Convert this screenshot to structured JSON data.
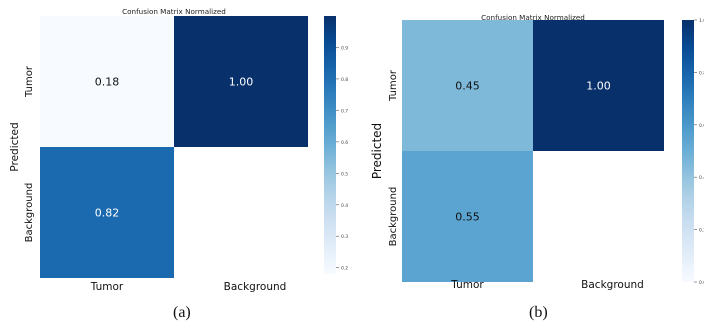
{
  "chart_data": [
    {
      "type": "heatmap",
      "title": "Confusion Matrix Normalized",
      "ylabel": "Predicted",
      "rows": [
        "Tumor",
        "Background"
      ],
      "cols": [
        "Tumor",
        "Background"
      ],
      "values": [
        [
          0.18,
          1.0
        ],
        [
          0.82,
          null
        ]
      ],
      "colorbar": {
        "range": [
          0.18,
          1.0
        ],
        "ticks": [
          0.2,
          0.3,
          0.4,
          0.5,
          0.6,
          0.7,
          0.8,
          0.9
        ]
      },
      "caption": "(a)"
    },
    {
      "type": "heatmap",
      "title": "Confusion Matrix Normalized",
      "ylabel": "Predicted",
      "rows": [
        "Tumor",
        "Background"
      ],
      "cols": [
        "Tumor",
        "Background"
      ],
      "values": [
        [
          0.45,
          1.0
        ],
        [
          0.55,
          null
        ]
      ],
      "colorbar": {
        "range": [
          0.0,
          1.0
        ],
        "ticks": [
          0.0,
          0.2,
          0.4,
          0.6,
          0.8,
          1.0
        ]
      },
      "caption": "(b)"
    }
  ],
  "colors": {
    "low": "#f7fbff",
    "high": "#08306b"
  }
}
